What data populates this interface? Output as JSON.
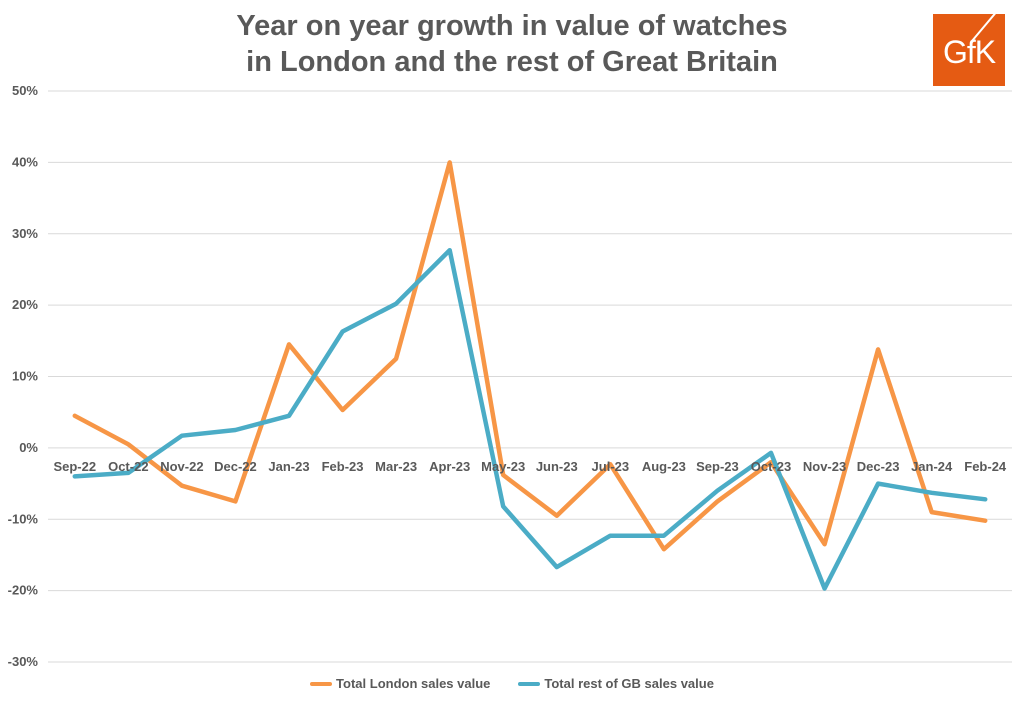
{
  "chart_data": {
    "type": "line",
    "title_line1": "Year on year growth in value of watches",
    "title_line2": "in London and the rest of Great Britain",
    "logo_text": "GfK",
    "categories": [
      "Sep-22",
      "Oct-22",
      "Nov-22",
      "Dec-22",
      "Jan-23",
      "Feb-23",
      "Mar-23",
      "Apr-23",
      "May-23",
      "Jun-23",
      "Jul-23",
      "Aug-23",
      "Sep-23",
      "Oct-23",
      "Nov-23",
      "Dec-23",
      "Jan-24",
      "Feb-24"
    ],
    "y_ticks": [
      50,
      40,
      30,
      20,
      10,
      0,
      -10,
      -20,
      -30
    ],
    "y_tick_labels": [
      "50%",
      "40%",
      "30%",
      "20%",
      "10%",
      "0%",
      "-10%",
      "-20%",
      "-30%"
    ],
    "ylim": [
      -30,
      50
    ],
    "y_unit": "%",
    "grid": true,
    "legend_position": "bottom",
    "series": [
      {
        "name": "Total London sales value",
        "color": "#f79646",
        "values": [
          4.5,
          0.5,
          -5.3,
          -7.5,
          14.5,
          5.3,
          12.5,
          40.0,
          -3.8,
          -9.5,
          -2.3,
          -14.2,
          -7.5,
          -2.0,
          -13.5,
          13.8,
          -9.0,
          -10.2
        ]
      },
      {
        "name": "Total rest of GB sales value",
        "color": "#4bacc6",
        "values": [
          -4.0,
          -3.5,
          1.7,
          2.5,
          4.5,
          16.3,
          20.2,
          27.7,
          -8.2,
          -16.7,
          -12.3,
          -12.3,
          -6.0,
          -0.7,
          -19.7,
          -5.0,
          -6.3,
          -7.2
        ]
      }
    ]
  }
}
